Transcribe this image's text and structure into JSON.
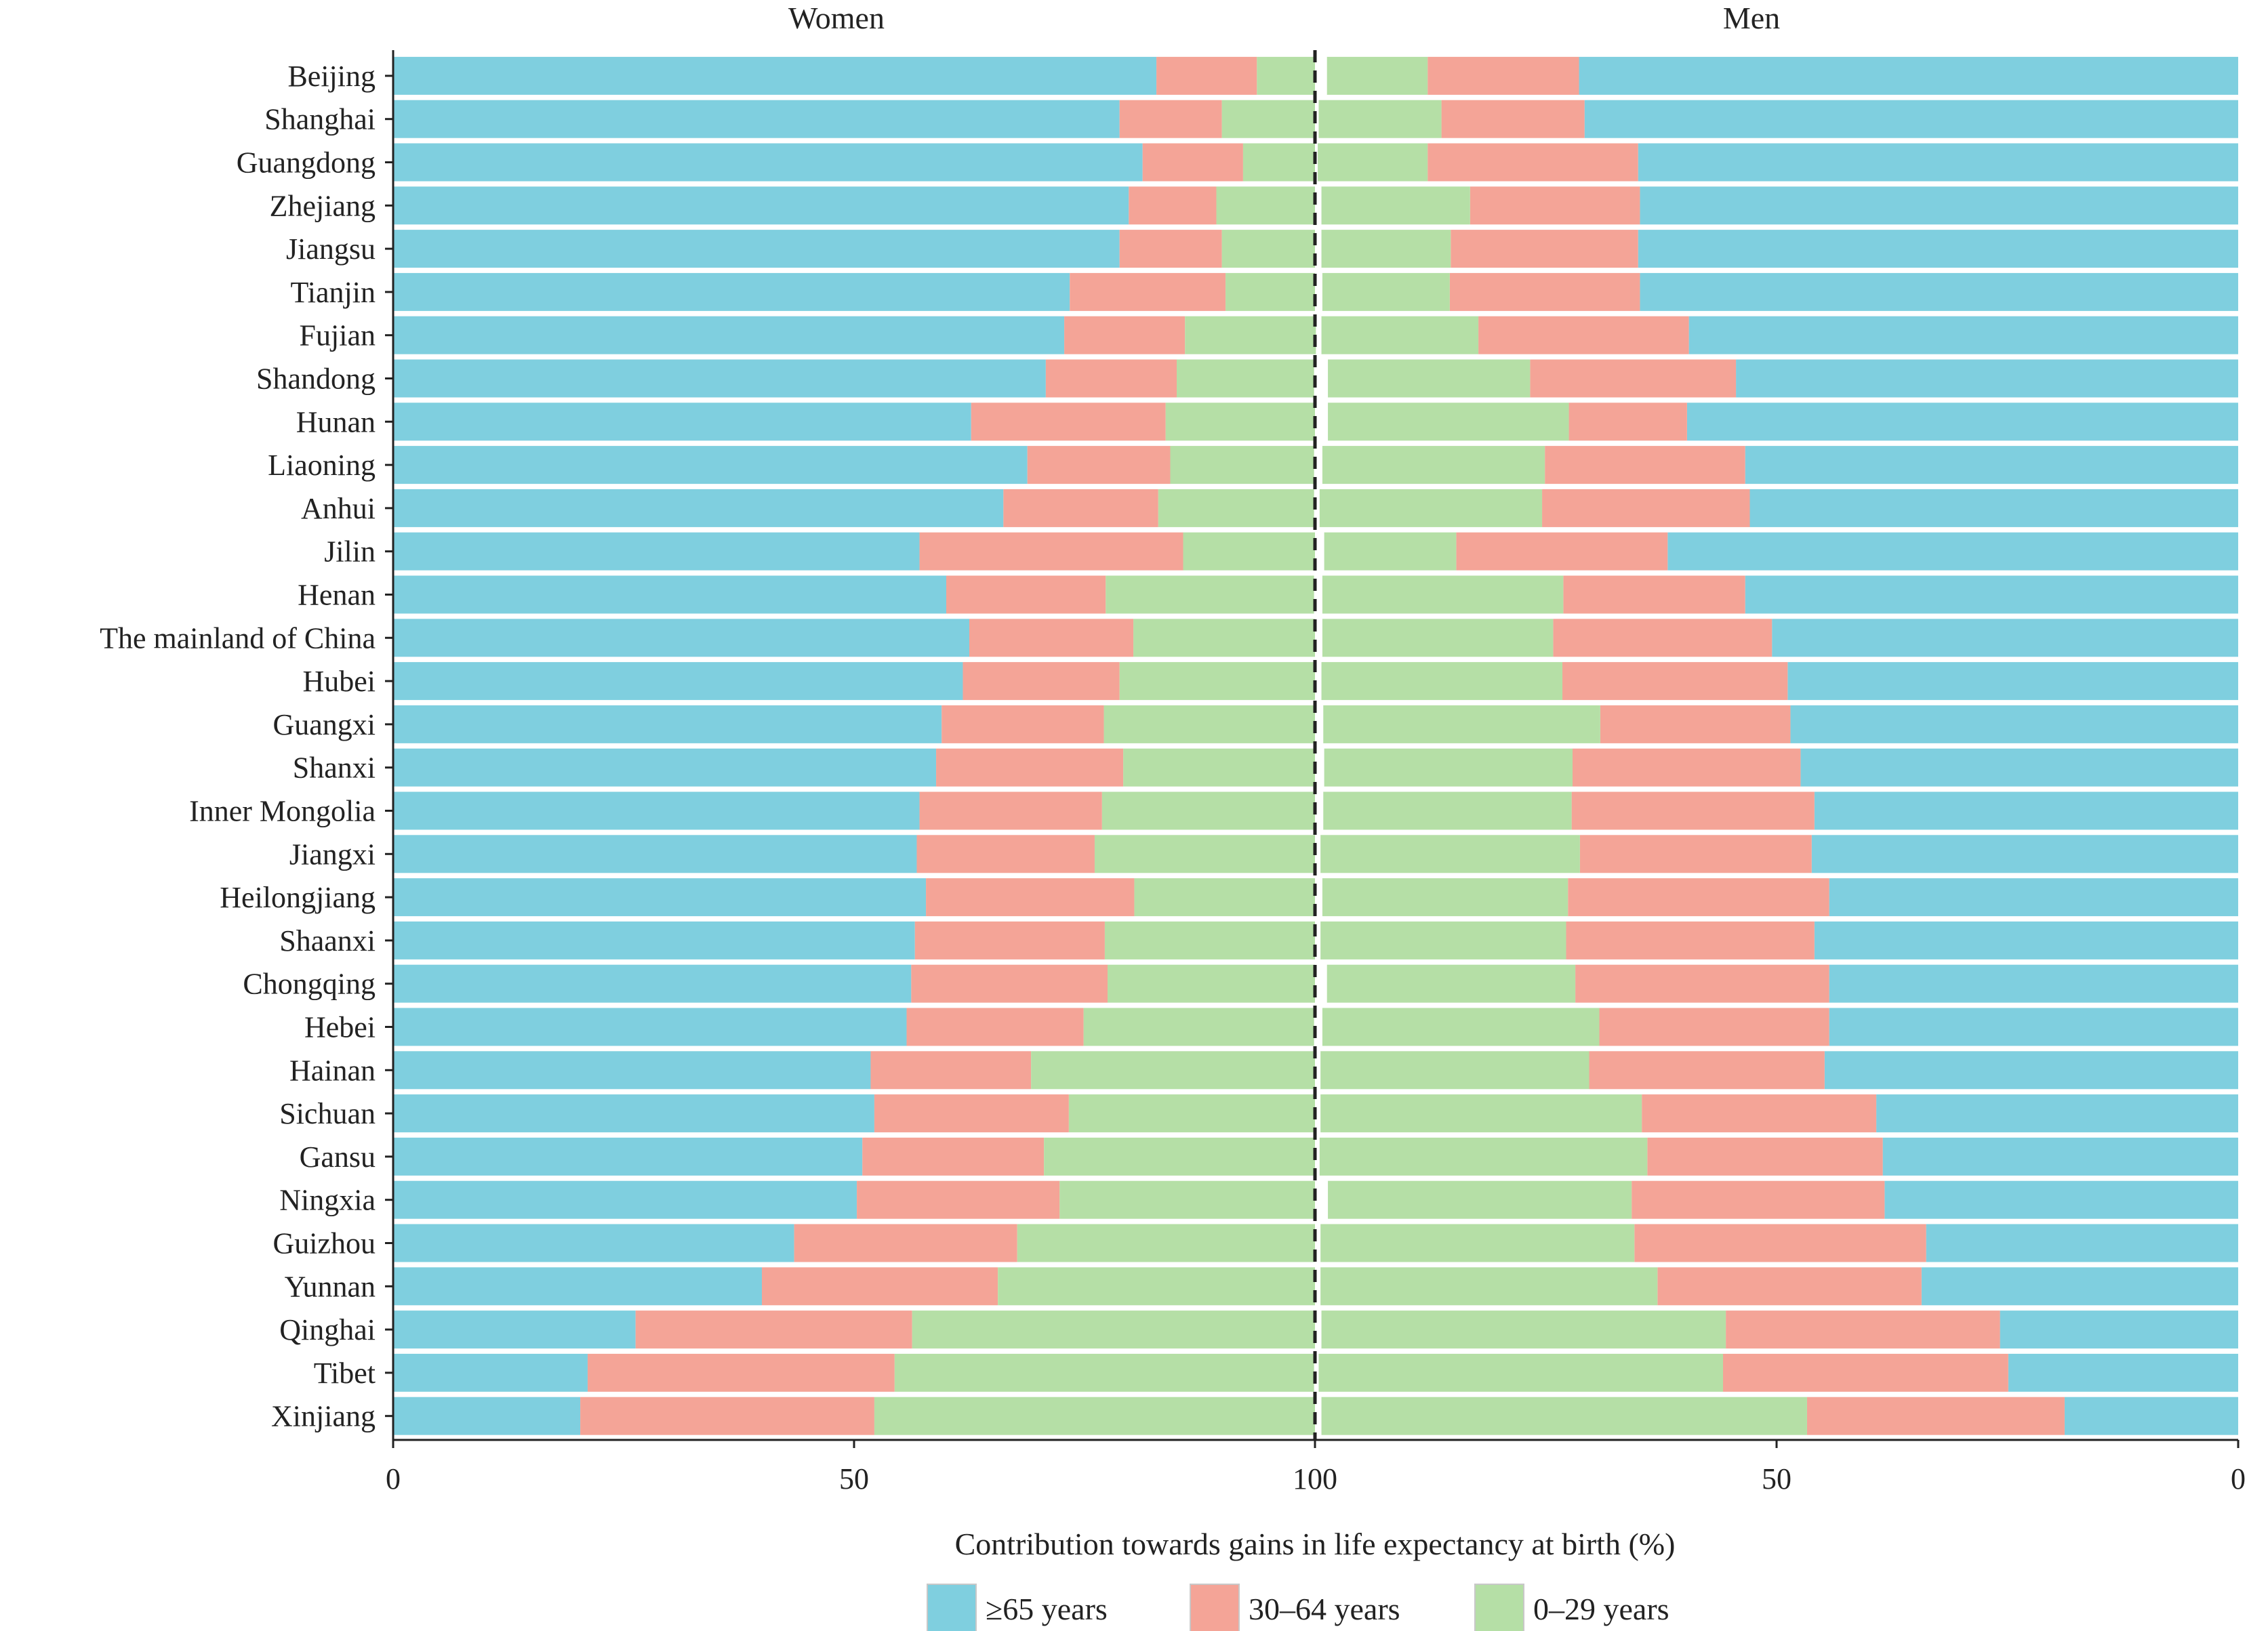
{
  "chart_data": {
    "type": "bar",
    "orientation": "horizontal-stacked-butterfly",
    "panels": [
      "Women",
      "Men"
    ],
    "xlabel": "Contribution towards gains in life expectancy at birth (%)",
    "xlim": [
      0,
      100
    ],
    "x_ticks": [
      0,
      50,
      100
    ],
    "x_tick_labels": [
      "0",
      "50",
      "100",
      "50",
      "0"
    ],
    "legend": {
      "placement": "bottom-center",
      "entries": [
        {
          "key": "ge65",
          "label": "≥65 years",
          "color": "#7fcfdf"
        },
        {
          "key": "a30_64",
          "label": "30–64 years",
          "color": "#f4a497"
        },
        {
          "key": "a0_29",
          "label": "0–29 years",
          "color": "#b5dfa6"
        }
      ]
    },
    "colors": {
      "ge65": "#7fcfdf",
      "a30_64": "#f4a497",
      "a0_29": "#b5dfa6",
      "divider": "#222222",
      "axis": "#222222",
      "text": "#222222"
    },
    "regions": [
      {
        "name": "Beijing",
        "women": [
          82.8,
          10.9,
          6.3
        ],
        "men": [
          71.4,
          16.4,
          10.9
        ]
      },
      {
        "name": "Shanghai",
        "women": [
          78.8,
          11.1,
          10.1
        ],
        "men": [
          70.8,
          15.5,
          13.3
        ]
      },
      {
        "name": "Guangdong",
        "women": [
          81.3,
          10.9,
          7.8
        ],
        "men": [
          65.0,
          22.8,
          11.9
        ]
      },
      {
        "name": "Zhejiang",
        "women": [
          79.8,
          9.5,
          10.7
        ],
        "men": [
          64.8,
          18.4,
          16.1
        ]
      },
      {
        "name": "Jiangsu",
        "women": [
          78.8,
          11.1,
          10.1
        ],
        "men": [
          65.0,
          20.3,
          14.0
        ]
      },
      {
        "name": "Tianjin",
        "women": [
          73.4,
          16.9,
          9.7
        ],
        "men": [
          64.8,
          20.6,
          13.8
        ]
      },
      {
        "name": "Fujian",
        "women": [
          72.8,
          13.1,
          14.2
        ],
        "men": [
          59.5,
          22.8,
          17.0
        ]
      },
      {
        "name": "Shandong",
        "women": [
          70.8,
          14.2,
          14.9
        ],
        "men": [
          54.4,
          22.3,
          21.9
        ]
      },
      {
        "name": "Hunan",
        "women": [
          62.7,
          21.1,
          16.2
        ],
        "men": [
          59.7,
          12.8,
          26.1
        ]
      },
      {
        "name": "Liaoning",
        "women": [
          68.8,
          15.5,
          15.6
        ],
        "men": [
          53.4,
          21.7,
          24.1
        ]
      },
      {
        "name": "Anhui",
        "women": [
          66.2,
          16.8,
          16.9
        ],
        "men": [
          52.9,
          22.5,
          24.1
        ]
      },
      {
        "name": "Jilin",
        "women": [
          57.1,
          28.6,
          14.3
        ],
        "men": [
          61.8,
          22.9,
          14.3
        ]
      },
      {
        "name": "Henan",
        "women": [
          60.0,
          17.3,
          22.6
        ],
        "men": [
          53.4,
          19.7,
          26.1
        ]
      },
      {
        "name": "The mainland of China",
        "women": [
          62.5,
          17.8,
          19.7
        ],
        "men": [
          50.5,
          23.7,
          25.0
        ]
      },
      {
        "name": "Hubei",
        "women": [
          61.8,
          17.0,
          21.2
        ],
        "men": [
          48.8,
          24.4,
          26.1
        ]
      },
      {
        "name": "Guangxi",
        "women": [
          59.5,
          17.6,
          22.9
        ],
        "men": [
          48.5,
          20.6,
          30.0
        ]
      },
      {
        "name": "Shanxi",
        "women": [
          58.9,
          20.3,
          20.8
        ],
        "men": [
          47.4,
          24.7,
          26.9
        ]
      },
      {
        "name": "Inner Mongolia",
        "women": [
          57.1,
          19.8,
          23.1
        ],
        "men": [
          45.9,
          26.3,
          26.9
        ]
      },
      {
        "name": "Jiangxi",
        "women": [
          56.8,
          19.3,
          23.9
        ],
        "men": [
          46.2,
          25.1,
          28.1
        ]
      },
      {
        "name": "Heilongjiang",
        "women": [
          57.8,
          22.6,
          19.6
        ],
        "men": [
          44.3,
          28.3,
          26.6
        ]
      },
      {
        "name": "Shaanxi",
        "women": [
          56.6,
          20.6,
          22.8
        ],
        "men": [
          45.9,
          26.9,
          26.6
        ]
      },
      {
        "name": "Chongqing",
        "women": [
          56.2,
          21.3,
          22.5
        ],
        "men": [
          44.3,
          27.5,
          26.9
        ]
      },
      {
        "name": "Hebei",
        "women": [
          55.7,
          19.2,
          25.0
        ],
        "men": [
          44.3,
          24.9,
          30.0
        ]
      },
      {
        "name": "Hainan",
        "women": [
          51.8,
          17.4,
          30.8
        ],
        "men": [
          44.8,
          25.5,
          29.1
        ]
      },
      {
        "name": "Sichuan",
        "women": [
          52.2,
          21.1,
          26.7
        ],
        "men": [
          39.2,
          25.4,
          34.8
        ]
      },
      {
        "name": "Gansu",
        "women": [
          50.9,
          19.7,
          29.4
        ],
        "men": [
          38.5,
          25.5,
          35.5
        ]
      },
      {
        "name": "Ningxia",
        "women": [
          50.3,
          22.0,
          27.7
        ],
        "men": [
          38.3,
          27.4,
          32.9
        ]
      },
      {
        "name": "Guizhou",
        "women": [
          43.5,
          24.2,
          32.3
        ],
        "men": [
          33.8,
          31.6,
          34.0
        ]
      },
      {
        "name": "Yunnan",
        "women": [
          40.0,
          25.6,
          34.4
        ],
        "men": [
          34.3,
          28.6,
          36.5
        ]
      },
      {
        "name": "Qinghai",
        "women": [
          26.3,
          30.0,
          43.7
        ],
        "men": [
          25.8,
          29.7,
          43.8
        ]
      },
      {
        "name": "Tibet",
        "women": [
          21.1,
          33.3,
          45.5
        ],
        "men": [
          24.9,
          30.9,
          43.8
        ]
      },
      {
        "name": "Xinjiang",
        "women": [
          20.3,
          31.9,
          47.8
        ],
        "men": [
          18.8,
          27.9,
          52.6
        ]
      }
    ]
  }
}
